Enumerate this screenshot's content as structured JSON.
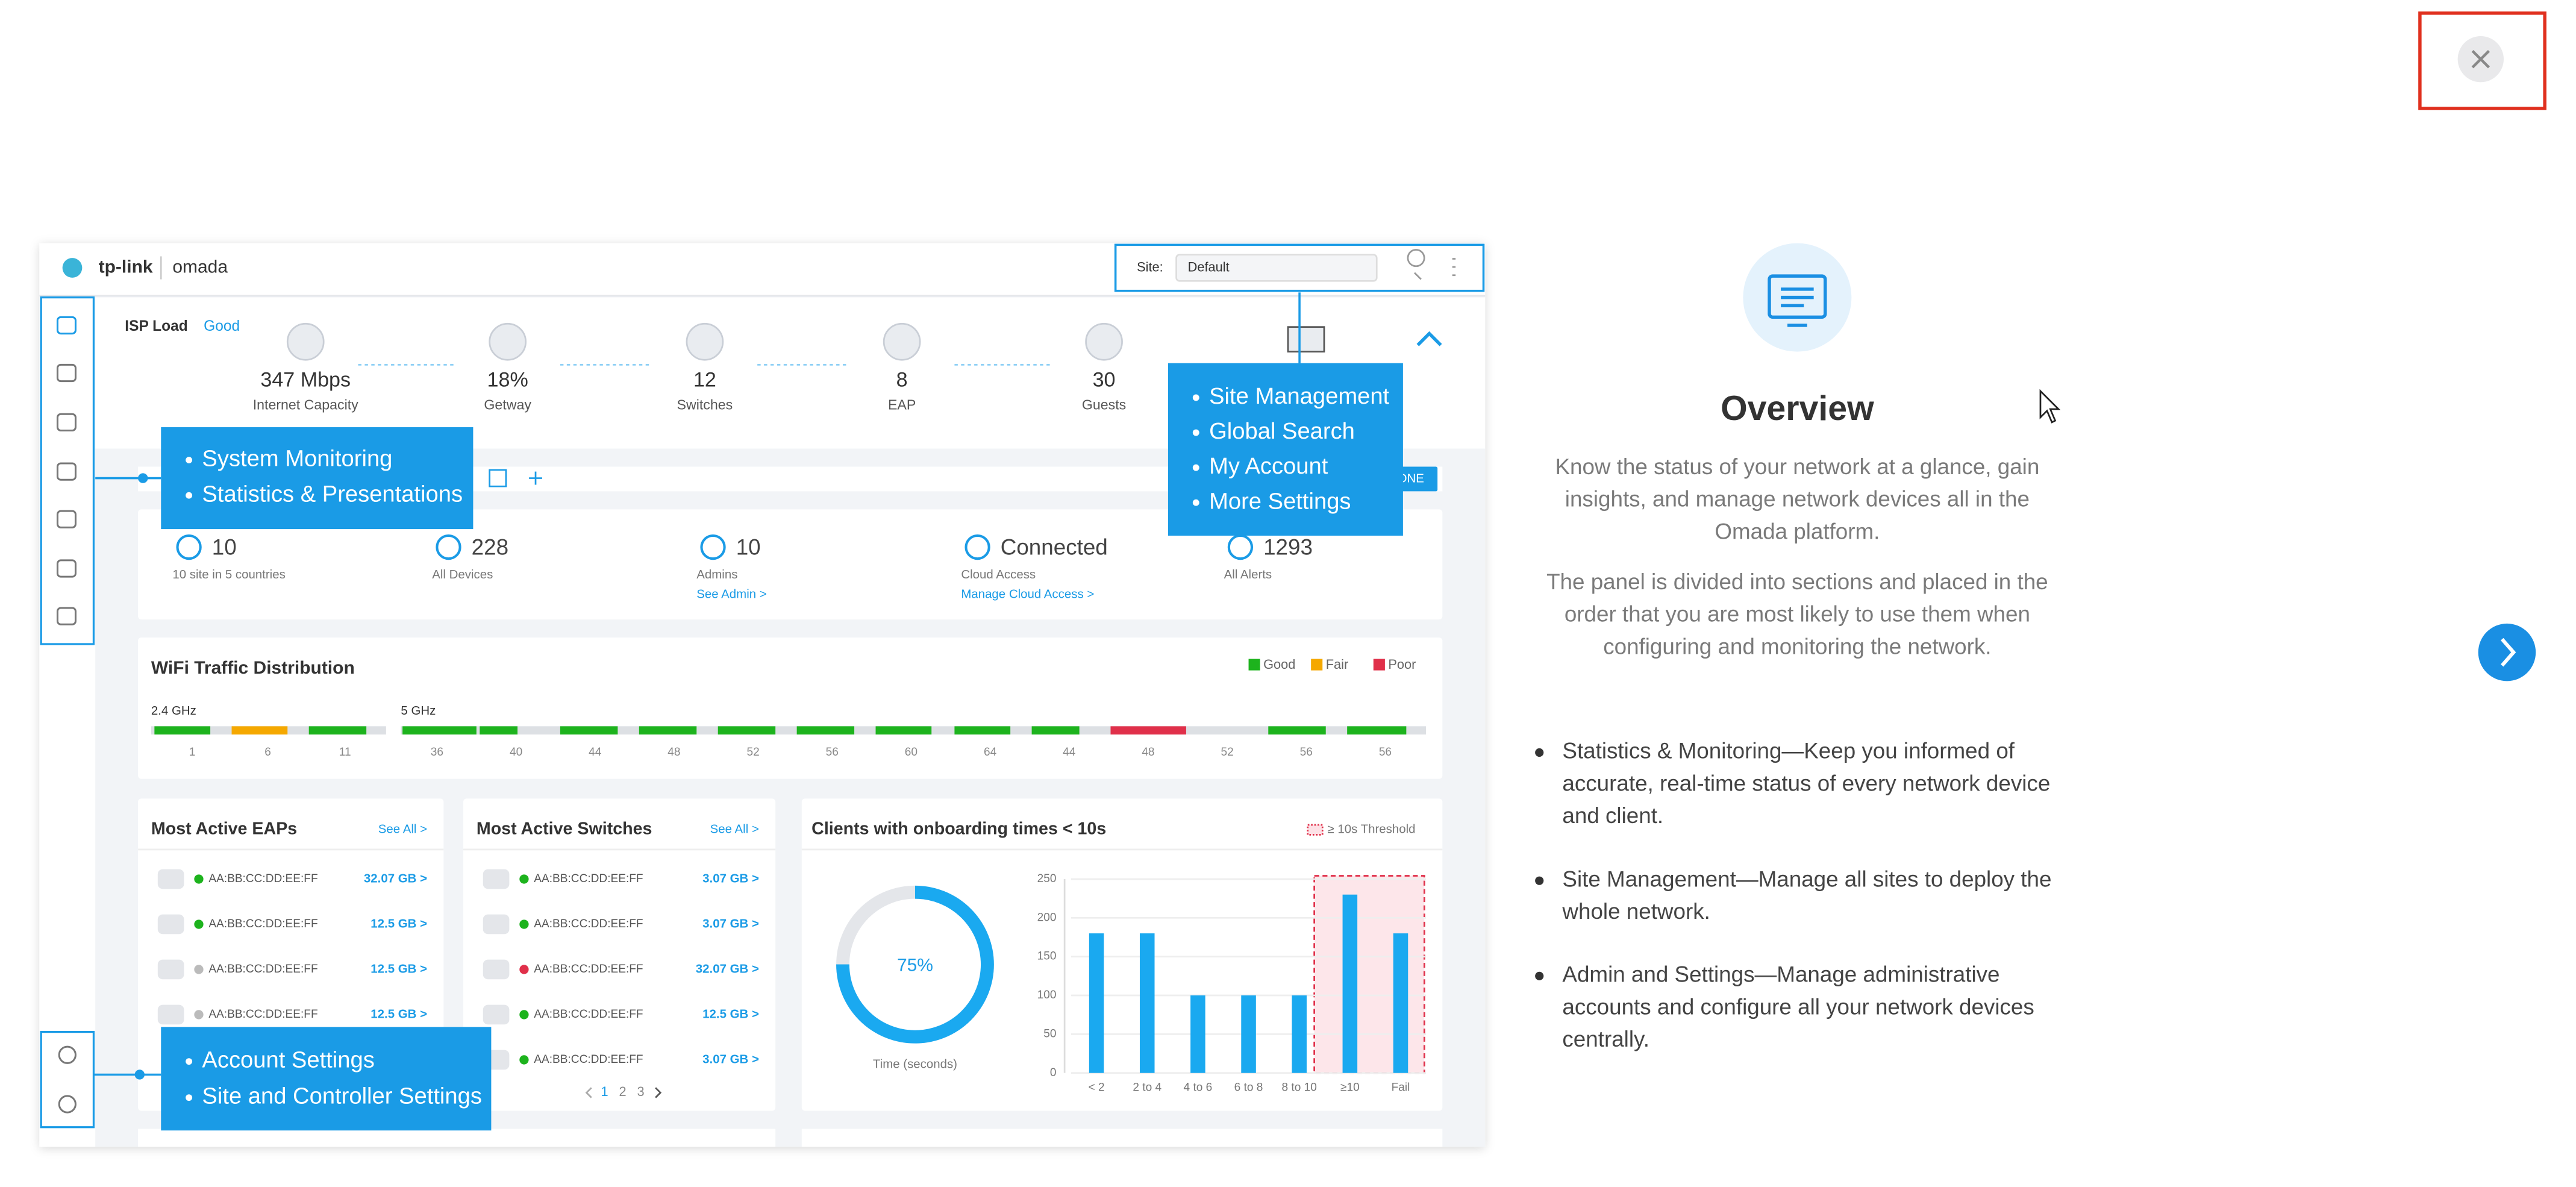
{
  "preview": {
    "brand": "tp-link",
    "product": "omada",
    "site_label": "Site:",
    "site_value": "Default",
    "isp_label": "ISP Load",
    "isp_status": "Good",
    "stats": [
      {
        "value": "347 Mbps",
        "label": "Internet Capacity"
      },
      {
        "value": "18%",
        "label": "Getway"
      },
      {
        "value": "12",
        "label": "Switches"
      },
      {
        "value": "8",
        "label": "EAP"
      },
      {
        "value": "30",
        "label": "Guests"
      }
    ],
    "done": "DONE",
    "summary": [
      {
        "value": "10",
        "label": "10 site in 5 countries"
      },
      {
        "value": "228",
        "label": "All Devices"
      },
      {
        "value": "10",
        "label": "Admins",
        "link": "See Admin >"
      },
      {
        "value": "Connected",
        "label": "Cloud Access",
        "link": "Manage Cloud Access >"
      },
      {
        "value": "1293",
        "label": "All Alerts"
      }
    ],
    "wifi": {
      "title": "WiFi Traffic Distribution",
      "legend": [
        {
          "name": "Good",
          "color": "#1db31d"
        },
        {
          "name": "Fair",
          "color": "#f5a800"
        },
        {
          "name": "Poor",
          "color": "#e0304a"
        }
      ],
      "band_24": "2.4 GHz",
      "channels_24": [
        "1",
        "6",
        "11"
      ],
      "band_5": "5 GHz",
      "channels_5": [
        "36",
        "40",
        "44",
        "48",
        "52",
        "56",
        "60",
        "64",
        "44",
        "48",
        "52",
        "56",
        "56"
      ]
    },
    "eaps": {
      "title": "Most Active EAPs",
      "see_all": "See All >",
      "rows": [
        {
          "mac": "AA:BB:CC:DD:EE:FF",
          "usage": "32.07 GB >"
        },
        {
          "mac": "AA:BB:CC:DD:EE:FF",
          "usage": "12.5 GB >"
        },
        {
          "mac": "AA:BB:CC:DD:EE:FF",
          "usage": "12.5 GB >"
        },
        {
          "mac": "AA:BB:CC:DD:EE:FF",
          "usage": "12.5 GB >"
        }
      ]
    },
    "switches": {
      "title": "Most Active Switches",
      "see_all": "See All >",
      "rows": [
        {
          "mac": "AA:BB:CC:DD:EE:FF",
          "usage": "3.07 GB >"
        },
        {
          "mac": "AA:BB:CC:DD:EE:FF",
          "usage": "3.07 GB >"
        },
        {
          "mac": "AA:BB:CC:DD:EE:FF",
          "usage": "32.07 GB >"
        },
        {
          "mac": "AA:BB:CC:DD:EE:FF",
          "usage": "12.5 GB >"
        },
        {
          "mac": "AA:BB:CC:DD:EE:FF",
          "usage": "3.07 GB >"
        }
      ],
      "pages": [
        "1",
        "2",
        "3"
      ]
    },
    "clients": {
      "title": "Clients with onboarding times < 10s",
      "threshold": "≥ 10s Threshold",
      "donut_value": "75%",
      "donut_label": "Time (seconds)",
      "chart": {
        "type": "bar",
        "categories": [
          "< 2",
          "2 to 4",
          "4 to 6",
          "6 to 8",
          "8 to 10",
          "≥10",
          "Fail"
        ],
        "values": [
          180,
          180,
          100,
          100,
          100,
          230,
          180
        ],
        "color": "#1aa9f0",
        "ylim": [
          0,
          250
        ],
        "yticks": [
          0,
          50,
          100,
          150,
          200,
          250
        ],
        "grid": true
      }
    },
    "callouts": [
      [
        "System Monitoring",
        "Statistics & Presentations"
      ],
      [
        "Site Management",
        "Global Search",
        "My Account",
        "More Settings"
      ],
      [
        "Account Settings",
        "Site and Controller Settings"
      ]
    ]
  },
  "panel": {
    "title": "Overview",
    "paragraphs": [
      [
        "Know the status of your network at a glance, gain",
        "insights, and manage network devices all in the",
        "Omada platform."
      ],
      [
        "The panel is divided into sections and placed in the",
        "order that you are most likely to use them when",
        "configuring and monitoring the network."
      ]
    ],
    "bullets": [
      [
        "Statistics & Monitoring—Keep you informed of",
        "accurate, real-time status of every network device",
        "and client."
      ],
      [
        "Site Management—Manage all sites to deploy the",
        "whole network."
      ],
      [
        "Admin and Settings—Manage administrative",
        "accounts and configure all your network devices",
        "centrally."
      ]
    ]
  }
}
